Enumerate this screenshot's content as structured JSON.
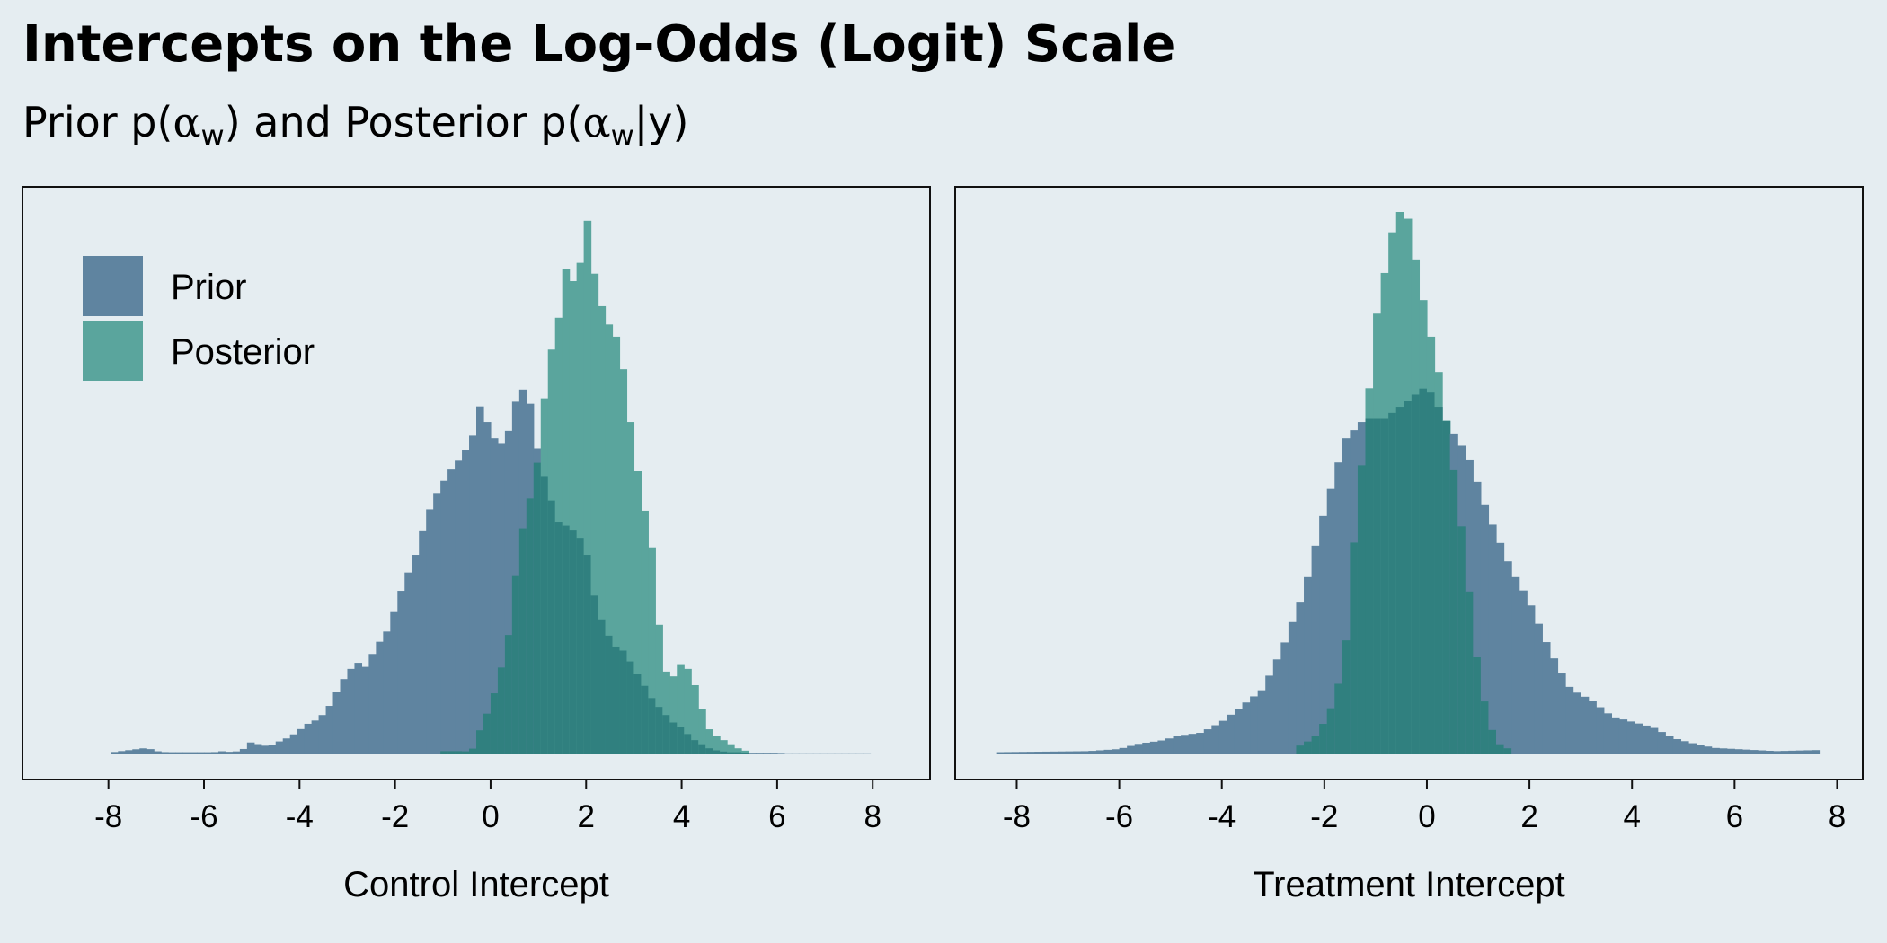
{
  "title": "Intercepts on the Log-Odds (Logit) Scale",
  "subtitle_parts": {
    "lead": "Prior p(",
    "alpha": "α",
    "sub": "w",
    "mid": ") and Posterior p(",
    "alpha2": "α",
    "sub2": "w",
    "tail": "|y)"
  },
  "colors": {
    "prior": "#5f84a0",
    "posterior": "#5aa59d",
    "overlap": "#30807f",
    "background": "#e5edf1"
  },
  "legend": {
    "position": "top-left",
    "items": [
      "Prior",
      "Posterior"
    ]
  },
  "chart_data": [
    {
      "type": "histogram",
      "xlabel": "Control Intercept",
      "xlim": [
        -9.8,
        9.2
      ],
      "xticks": [
        -8,
        -6,
        -4,
        -2,
        0,
        2,
        4,
        6,
        8
      ],
      "bin_width": 0.15,
      "y_max": 1.0,
      "series": [
        {
          "name": "Prior",
          "x": [
            -8.0,
            -7.2,
            -7.0,
            -6.8,
            -6.4,
            -6.2,
            -5.8,
            -5.6,
            -5.4,
            -5.2,
            -5.0,
            -4.8,
            -4.6,
            -4.4,
            -4.2,
            -4.0,
            -3.8,
            -3.6,
            -3.4,
            -3.2,
            -3.0,
            -2.8,
            -2.6,
            -2.4,
            -2.2,
            -2.0,
            -1.8,
            -1.6,
            -1.4,
            -1.2,
            -1.0,
            -0.8,
            -0.6,
            -0.4,
            -0.2,
            0.0,
            0.2,
            0.4,
            0.6,
            0.8,
            1.0,
            1.2,
            1.4,
            1.6,
            1.8,
            2.0,
            2.2,
            2.4,
            2.6,
            2.8,
            3.0,
            3.2,
            3.4,
            3.6,
            3.8,
            4.0,
            4.2,
            4.4,
            4.6,
            4.8,
            5.0,
            5.2,
            5.4,
            5.6,
            5.8,
            6.0,
            6.2,
            6.6,
            7.0,
            7.6,
            8.0
          ],
          "y": [
            0.003,
            0.012,
            0.006,
            0.004,
            0.004,
            0.004,
            0.004,
            0.006,
            0.004,
            0.008,
            0.024,
            0.016,
            0.016,
            0.025,
            0.032,
            0.045,
            0.058,
            0.065,
            0.085,
            0.12,
            0.15,
            0.17,
            0.16,
            0.2,
            0.22,
            0.27,
            0.32,
            0.36,
            0.42,
            0.47,
            0.5,
            0.53,
            0.55,
            0.58,
            0.65,
            0.59,
            0.57,
            0.6,
            0.68,
            0.66,
            0.55,
            0.49,
            0.43,
            0.42,
            0.41,
            0.38,
            0.28,
            0.23,
            0.2,
            0.19,
            0.16,
            0.13,
            0.1,
            0.08,
            0.06,
            0.05,
            0.03,
            0.02,
            0.01,
            0.006,
            0.004,
            0.004,
            0.003,
            0.003,
            0.003,
            0.003,
            0.002,
            0.002,
            0.002,
            0.002,
            0.002
          ]
        },
        {
          "name": "Posterior",
          "x": [
            -1.0,
            -0.6,
            -0.4,
            -0.2,
            0.0,
            0.2,
            0.4,
            0.6,
            0.8,
            1.0,
            1.2,
            1.4,
            1.6,
            1.8,
            2.0,
            2.2,
            2.4,
            2.6,
            2.8,
            3.0,
            3.2,
            3.4,
            3.6,
            3.8,
            4.0,
            4.2,
            4.4,
            4.6,
            4.8,
            5.0,
            5.2,
            5.4
          ],
          "y": [
            0.006,
            0.006,
            0.005,
            0.05,
            0.09,
            0.15,
            0.23,
            0.39,
            0.46,
            0.55,
            0.72,
            0.79,
            0.91,
            0.85,
            1.0,
            0.87,
            0.8,
            0.78,
            0.7,
            0.56,
            0.46,
            0.37,
            0.16,
            0.14,
            0.17,
            0.15,
            0.09,
            0.04,
            0.03,
            0.02,
            0.01,
            0.005
          ]
        }
      ]
    },
    {
      "type": "histogram",
      "xlabel": "Treatment Intercept",
      "xlim": [
        -9.2,
        8.5
      ],
      "xticks": [
        -8,
        -6,
        -4,
        -2,
        0,
        2,
        4,
        6,
        8
      ],
      "bin_width": 0.15,
      "y_max": 1.0,
      "series": [
        {
          "name": "Prior",
          "x": [
            -8.4,
            -7.5,
            -6.6,
            -6.0,
            -5.6,
            -5.2,
            -4.8,
            -4.4,
            -4.0,
            -3.6,
            -3.2,
            -2.8,
            -2.4,
            -2.0,
            -1.6,
            -1.2,
            -0.8,
            -0.4,
            0.0,
            0.4,
            0.8,
            1.2,
            1.6,
            2.0,
            2.4,
            2.8,
            3.2,
            3.6,
            4.0,
            4.4,
            4.8,
            5.2,
            5.6,
            6.0,
            6.4,
            6.8,
            7.6
          ],
          "y": [
            0.004,
            0.005,
            0.006,
            0.01,
            0.02,
            0.025,
            0.035,
            0.04,
            0.06,
            0.09,
            0.12,
            0.2,
            0.3,
            0.45,
            0.58,
            0.62,
            0.62,
            0.65,
            0.68,
            0.61,
            0.55,
            0.44,
            0.35,
            0.28,
            0.19,
            0.12,
            0.1,
            0.07,
            0.06,
            0.05,
            0.03,
            0.02,
            0.012,
            0.01,
            0.008,
            0.006,
            0.008
          ]
        },
        {
          "name": "Posterior",
          "x": [
            -2.6,
            -2.2,
            -2.0,
            -1.8,
            -1.6,
            -1.4,
            -1.2,
            -1.0,
            -0.8,
            -0.6,
            -0.4,
            -0.2,
            0.0,
            0.2,
            0.4,
            0.6,
            0.8,
            1.0,
            1.2,
            1.4,
            1.6
          ],
          "y": [
            0.01,
            0.03,
            0.06,
            0.1,
            0.18,
            0.42,
            0.6,
            0.8,
            0.9,
            1.0,
            1.0,
            0.9,
            0.8,
            0.72,
            0.6,
            0.48,
            0.32,
            0.16,
            0.06,
            0.02,
            0.01
          ]
        }
      ]
    }
  ]
}
